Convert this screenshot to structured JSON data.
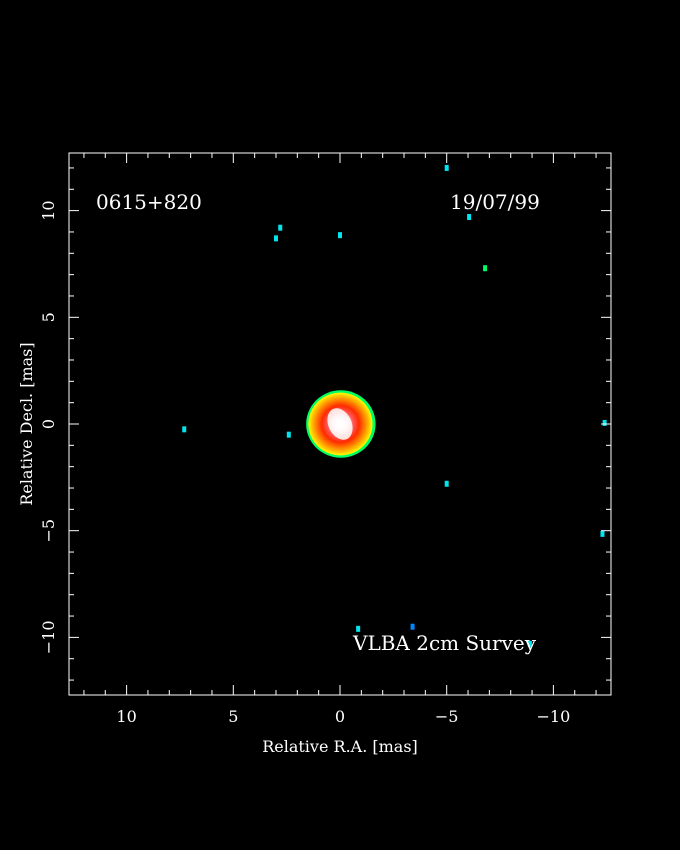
{
  "chart_data": {
    "type": "heatmap",
    "source_label": "0615+820",
    "date_label": "19/07/99",
    "survey_label": "VLBA 2cm Survey",
    "xlabel": "Relative R.A. [mas]",
    "ylabel": "Relative Decl. [mas]",
    "xlim": [
      12.7,
      -12.7
    ],
    "ylim": [
      -12.7,
      12.7
    ],
    "x_ticks": [
      10,
      5,
      0,
      -5,
      -10
    ],
    "x_tick_labels": [
      "10",
      "5",
      "0",
      "−5",
      "−10"
    ],
    "y_ticks": [
      10,
      5,
      0,
      -5,
      -10
    ],
    "y_tick_labels": [
      "10",
      "5",
      "0",
      "−5",
      "−10"
    ],
    "background_color": "#000000",
    "colormap": [
      "#00e5ee",
      "#00ff66",
      "#ffff00",
      "#ff9900",
      "#ff2a00",
      "#ff9a9a",
      "#ffffff"
    ],
    "core": {
      "x": 0.0,
      "y": 0.0,
      "ra_halfwidth": 1.55,
      "dec_halfwidth": 1.55,
      "peak_color": "#ffffff"
    },
    "noise_components": [
      {
        "x": 3.0,
        "y": 8.7,
        "color": "#00e5ee"
      },
      {
        "x": 2.8,
        "y": 9.2,
        "color": "#00e5ee"
      },
      {
        "x": 0.0,
        "y": 8.85,
        "color": "#00e5ee"
      },
      {
        "x": -5.0,
        "y": 12.0,
        "color": "#00e5ee"
      },
      {
        "x": -6.05,
        "y": 9.7,
        "color": "#00e5ee"
      },
      {
        "x": -6.8,
        "y": 7.3,
        "color": "#00ff66"
      },
      {
        "x": 7.3,
        "y": -0.25,
        "color": "#00e5ee"
      },
      {
        "x": 2.4,
        "y": -0.5,
        "color": "#00e5ee"
      },
      {
        "x": -5.0,
        "y": -2.8,
        "color": "#00e5ee"
      },
      {
        "x": -12.4,
        "y": 0.05,
        "color": "#00e5ee"
      },
      {
        "x": -12.3,
        "y": -5.15,
        "color": "#00e5ee"
      },
      {
        "x": -0.85,
        "y": -9.6,
        "color": "#00e5ee"
      },
      {
        "x": -3.4,
        "y": -9.5,
        "color": "#0088ff"
      },
      {
        "x": -8.9,
        "y": -10.3,
        "color": "#00e5ee"
      }
    ]
  }
}
